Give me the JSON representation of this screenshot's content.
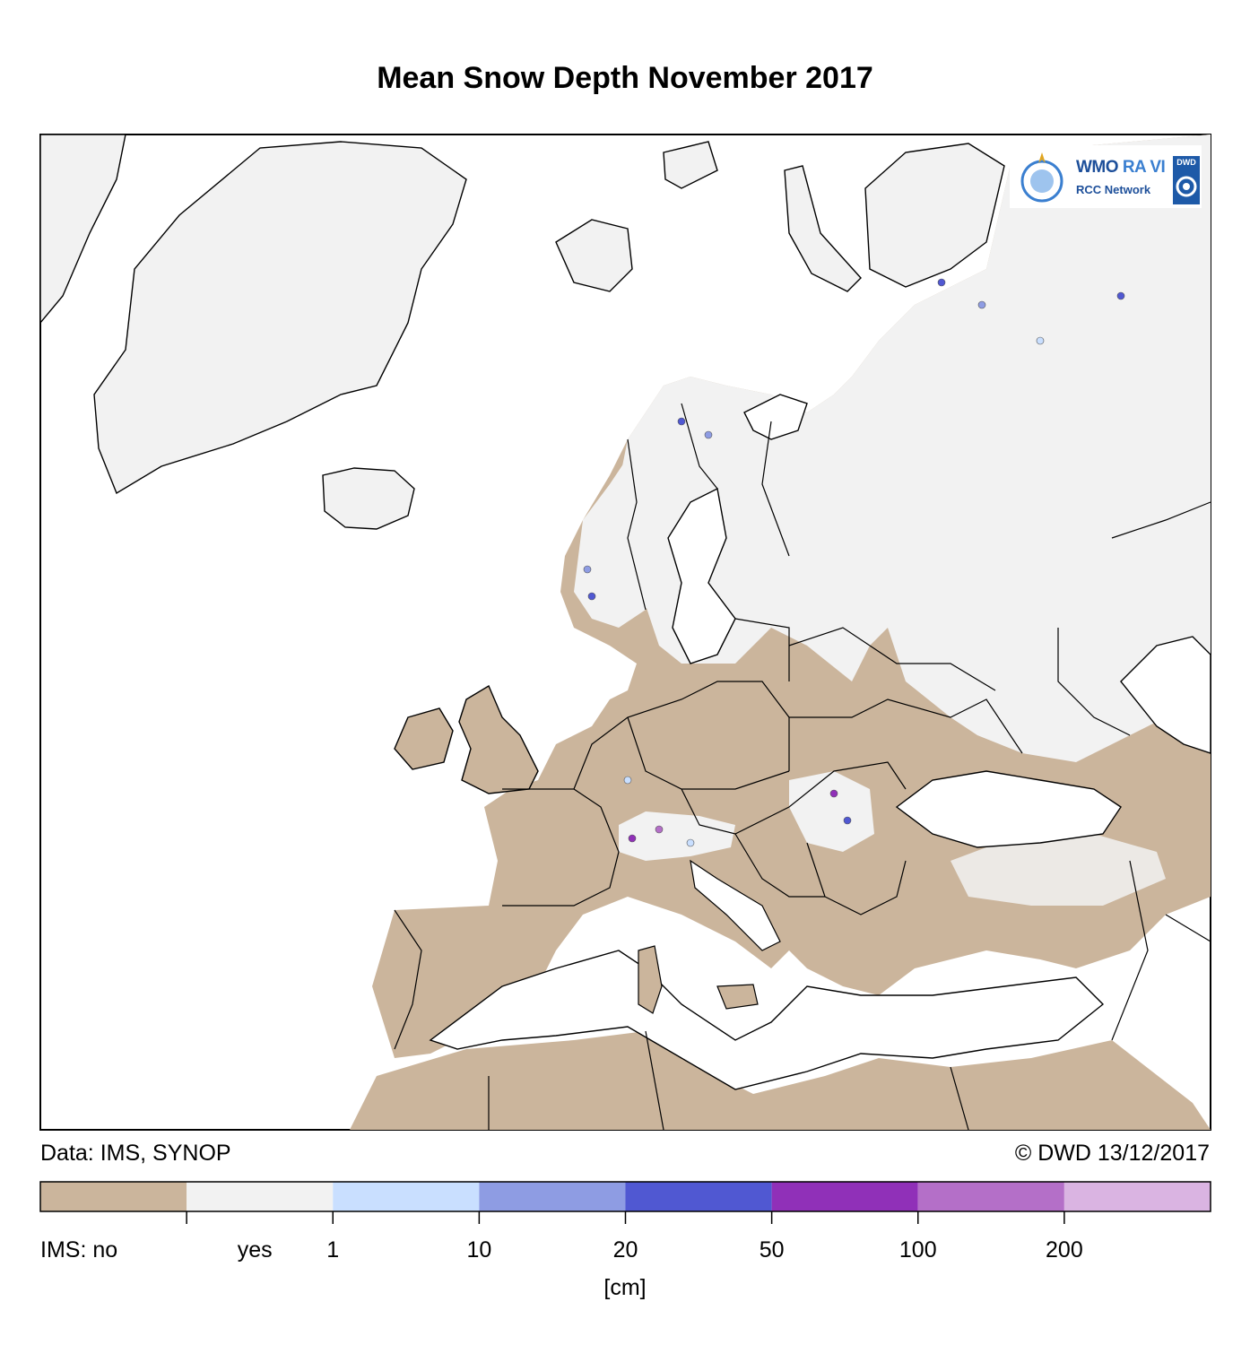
{
  "title": "Mean Snow Depth November 2017",
  "data_source": "Data: IMS, SYNOP",
  "copyright": "© DWD 13/12/2017",
  "logo": {
    "wmo_text": "WMO",
    "ra_text": "RA VI",
    "network_text": "RCC Network",
    "dwd_text": "DWD"
  },
  "colors": {
    "land_no_snow": "#cbb59c",
    "land_snow": "#f2f2f2",
    "sea": "#ffffff",
    "border": "#000000"
  },
  "legend": {
    "unit": "[cm]",
    "classes": [
      {
        "color": "#cbb59c"
      },
      {
        "color": "#f2f2f2"
      },
      {
        "color": "#c9dfff"
      },
      {
        "color": "#8e9ce3"
      },
      {
        "color": "#5058d2"
      },
      {
        "color": "#9030b8"
      },
      {
        "color": "#b46fc8"
      },
      {
        "color": "#dab4e2"
      }
    ],
    "labels": [
      "IMS: no",
      "yes",
      "1",
      "10",
      "20",
      "50",
      "100",
      "200"
    ]
  },
  "stations": [
    {
      "region": "northern-russia",
      "class": 4
    },
    {
      "region": "northern-russia",
      "class": 3
    },
    {
      "region": "northern-russia",
      "class": 2
    },
    {
      "region": "northern-russia",
      "class": 4
    },
    {
      "region": "scandinavia",
      "class": 4
    },
    {
      "region": "scandinavia",
      "class": 3
    },
    {
      "region": "norway",
      "class": 3
    },
    {
      "region": "norway",
      "class": 4
    },
    {
      "region": "alps",
      "class": 5
    },
    {
      "region": "alps",
      "class": 6
    },
    {
      "region": "alps",
      "class": 2
    },
    {
      "region": "carpathians",
      "class": 5
    },
    {
      "region": "carpathians",
      "class": 4
    },
    {
      "region": "germany",
      "class": 2
    }
  ]
}
